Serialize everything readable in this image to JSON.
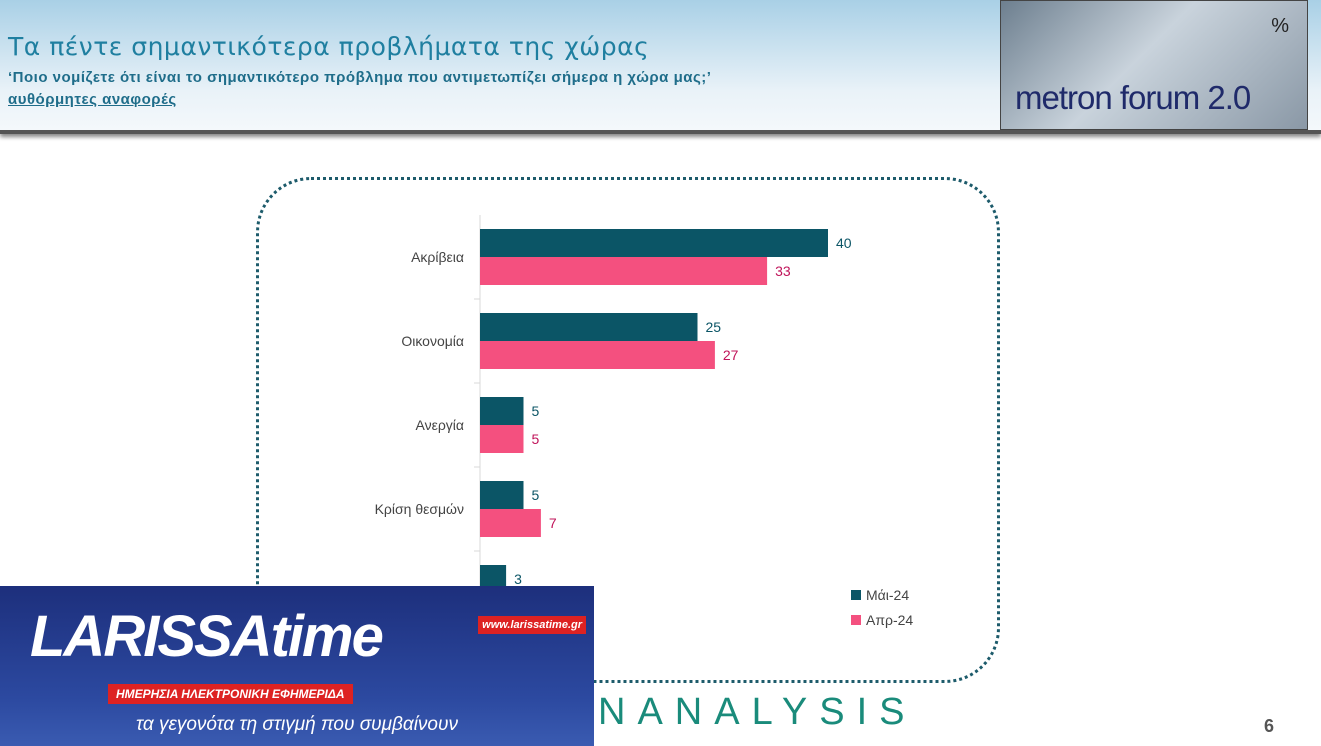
{
  "header": {
    "title": "Τα πέντε σημαντικότερα προβλήματα της χώρας",
    "subtitle": "‘Ποιο νομίζετε ότι είναι το σημαντικότερο πρόβλημα που αντιμετωπίζει σήμερα η χώρα μας;’",
    "note": "αυθόρμητες αναφορές",
    "logo": "metron forum 2.0",
    "logo_symbol": "%"
  },
  "chart_data": {
    "type": "bar",
    "orientation": "horizontal",
    "categories": [
      "Ακρίβεια",
      "Οικονομία",
      "Ανεργία",
      "Κρίση θεσμών",
      ""
    ],
    "series": [
      {
        "name": "Μάι-24",
        "color": "#0b5566",
        "values": [
          40,
          25,
          5,
          5,
          3
        ]
      },
      {
        "name": "Απρ-24",
        "color": "#f4507f",
        "values": [
          33,
          27,
          5,
          7,
          null
        ]
      }
    ],
    "xlim": [
      0,
      40
    ],
    "legend": "bottom-right"
  },
  "overlay": {
    "brand": "LARISSAtime",
    "url": "www.larissatime.gr",
    "tagline": "ΗΜΕΡΗΣΙΑ ΗΛΕΚΤΡΟΝΙΚΗ ΕΦΗΜΕΡΙΔΑ",
    "slogan": "τα γεγονότα τη στιγμή που συμβαίνουν"
  },
  "footer": {
    "brand": "NANALYSIS",
    "page": "6"
  }
}
